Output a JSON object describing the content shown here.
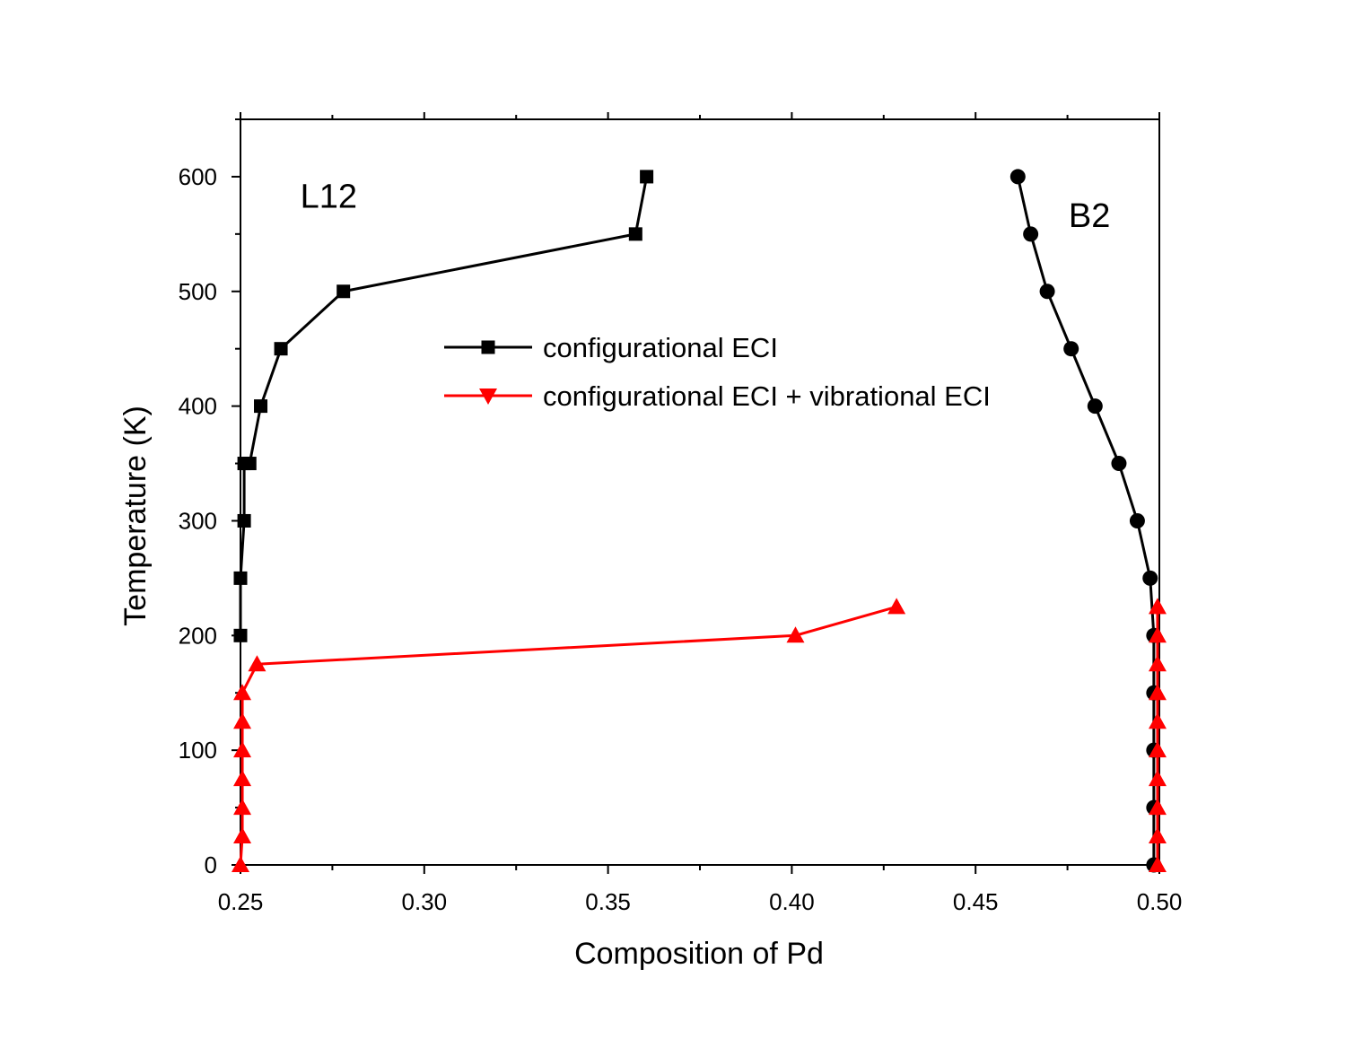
{
  "chart_data": {
    "type": "line",
    "xlabel": "Composition of Pd",
    "ylabel": "Temperature (K)",
    "xlim": [
      0.25,
      0.5
    ],
    "ylim": [
      0,
      650
    ],
    "xticks": [
      "0.25",
      "0.30",
      "0.35",
      "0.40",
      "0.45",
      "0.50"
    ],
    "yticks": [
      "0",
      "100",
      "200",
      "300",
      "400",
      "500",
      "600"
    ],
    "annotations": [
      {
        "text": "L12",
        "x": 0.274,
        "y": 573
      },
      {
        "text": "B2",
        "x": 0.481,
        "y": 556
      }
    ],
    "legend": {
      "position": "center",
      "entries": [
        {
          "label": "configurational ECI",
          "color": "#000000",
          "marker": "square"
        },
        {
          "label": "configurational ECI + vibrational ECI",
          "color": "#ff0000",
          "marker": "triangle-down"
        }
      ]
    },
    "series": [
      {
        "name": "configurational ECI",
        "color": "#000000",
        "marker": "square",
        "points": [
          [
            0.25,
            200
          ],
          [
            0.25,
            250
          ],
          [
            0.251,
            300
          ],
          [
            0.251,
            350
          ],
          [
            0.2525,
            350
          ],
          [
            0.2555,
            400
          ],
          [
            0.261,
            450
          ],
          [
            0.278,
            500
          ],
          [
            0.3575,
            550
          ],
          [
            0.3605,
            600
          ]
        ]
      },
      {
        "name": "configurational ECI",
        "color": "#000000",
        "marker": "circle",
        "points": [
          [
            0.4615,
            600
          ],
          [
            0.465,
            550
          ],
          [
            0.4695,
            500
          ],
          [
            0.476,
            450
          ],
          [
            0.4825,
            400
          ],
          [
            0.489,
            350
          ],
          [
            0.494,
            300
          ],
          [
            0.4975,
            250
          ],
          [
            0.4985,
            200
          ],
          [
            0.4985,
            150
          ],
          [
            0.4985,
            100
          ],
          [
            0.4985,
            50
          ],
          [
            0.4985,
            0
          ]
        ]
      },
      {
        "name": "configurational ECI + vibrational ECI",
        "color": "#ff0000",
        "marker": "triangle-up",
        "points": [
          [
            0.25,
            0
          ],
          [
            0.2505,
            25
          ],
          [
            0.2505,
            50
          ],
          [
            0.2505,
            75
          ],
          [
            0.2505,
            100
          ],
          [
            0.2505,
            125
          ],
          [
            0.2505,
            150
          ],
          [
            0.2545,
            175
          ],
          [
            0.401,
            200
          ],
          [
            0.4285,
            225
          ]
        ]
      },
      {
        "name": "configurational ECI + vibrational ECI",
        "color": "#ff0000",
        "marker": "triangle-up",
        "points": [
          [
            0.4995,
            0
          ],
          [
            0.4995,
            25
          ],
          [
            0.4995,
            50
          ],
          [
            0.4995,
            75
          ],
          [
            0.4995,
            100
          ],
          [
            0.4995,
            125
          ],
          [
            0.4995,
            150
          ],
          [
            0.4995,
            175
          ],
          [
            0.4995,
            200
          ],
          [
            0.4995,
            225
          ]
        ]
      }
    ]
  }
}
